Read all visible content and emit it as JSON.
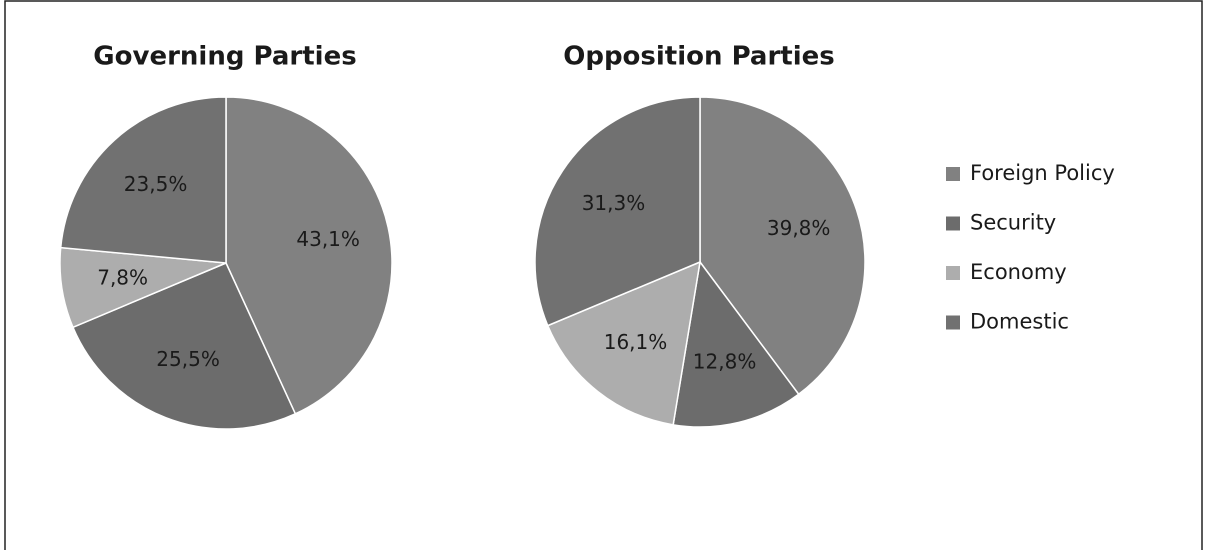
{
  "chart_data": [
    {
      "type": "pie",
      "title": "Governing Parties",
      "categories": [
        "Foreign Policy",
        "Security",
        "Economy",
        "Domestic"
      ],
      "values": [
        43.1,
        25.5,
        7.8,
        23.5
      ],
      "value_labels": [
        "43,1%",
        "25,5%",
        "7,8%",
        "23,5%"
      ],
      "colors": [
        "#818181",
        "#6c6c6c",
        "#adadad",
        "#717171"
      ]
    },
    {
      "type": "pie",
      "title": "Opposition Parties",
      "categories": [
        "Foreign Policy",
        "Security",
        "Economy",
        "Domestic"
      ],
      "values": [
        39.8,
        12.8,
        16.1,
        31.3
      ],
      "value_labels": [
        "39,8%",
        "12,8%",
        "16,1%",
        "31,3%"
      ],
      "colors": [
        "#818181",
        "#6c6c6c",
        "#adadad",
        "#717171"
      ],
      "legend": "right"
    }
  ]
}
